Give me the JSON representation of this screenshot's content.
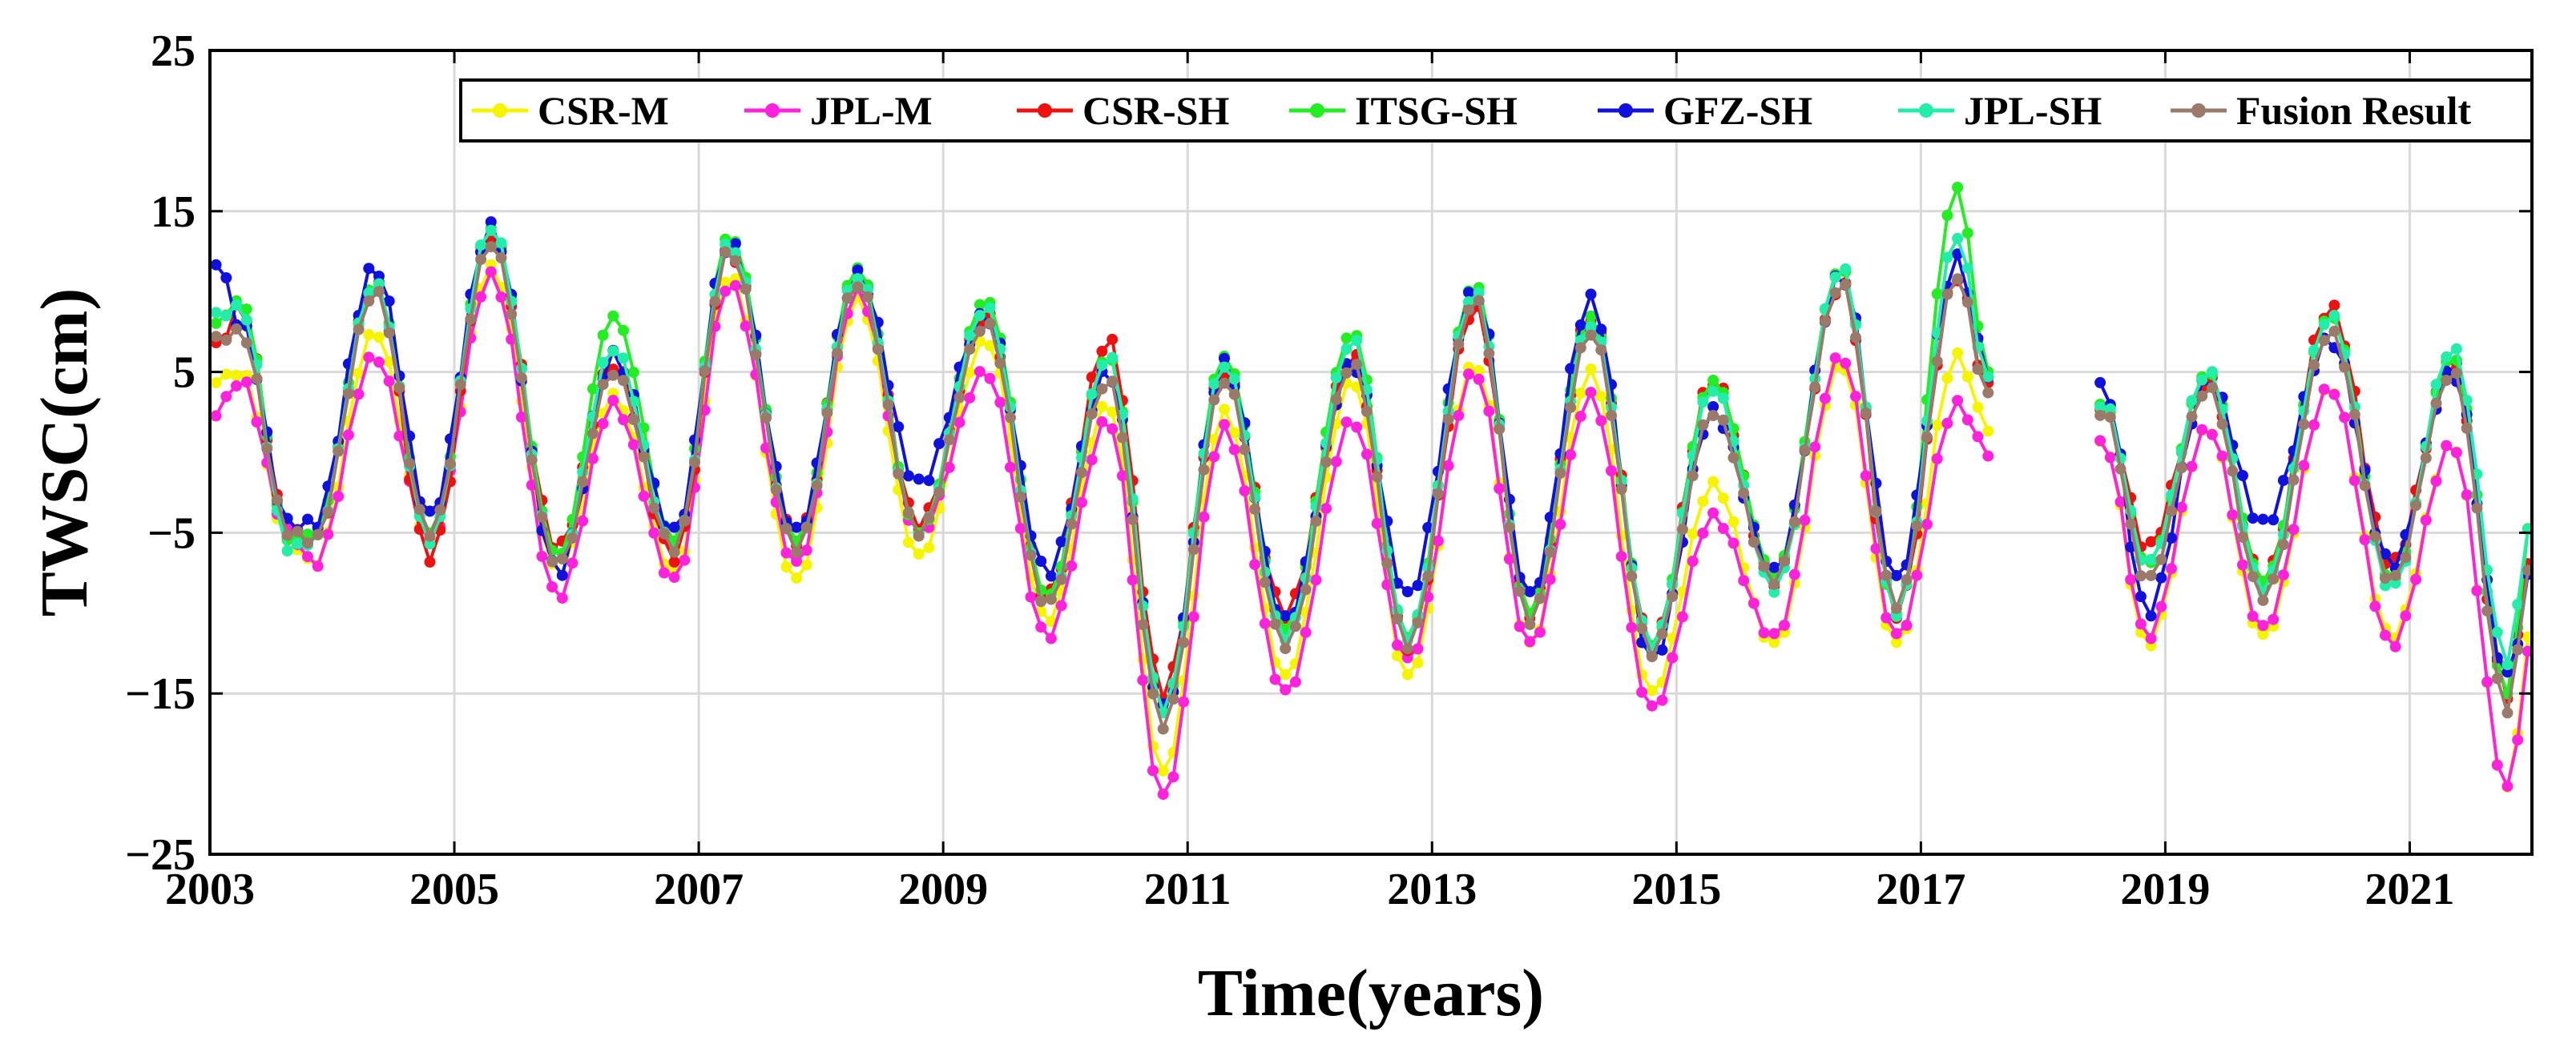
{
  "chart_data": {
    "type": "line",
    "title": "",
    "xlabel": "Time(years)",
    "ylabel": "TWSC(cm)",
    "xlim": [
      2003,
      2022
    ],
    "ylim": [
      -25,
      25
    ],
    "xticks": [
      2003,
      2005,
      2007,
      2009,
      2011,
      2013,
      2015,
      2017,
      2019,
      2021
    ],
    "xtick_labels": [
      "2003",
      "2005",
      "2007",
      "2009",
      "2011",
      "2013",
      "2015",
      "2017",
      "2019",
      "2021"
    ],
    "yticks": [
      -25,
      -15,
      -5,
      5,
      15,
      25
    ],
    "ytick_labels": [
      "−25",
      "−15",
      "−5",
      "5",
      "15",
      "25"
    ],
    "grid": true,
    "legend_position": "top",
    "data_gap": [
      2017.6,
      2018.45
    ],
    "keypoints": {
      "x": [
        2003.05,
        2003.25,
        2003.65,
        2003.85,
        2004.35,
        2004.8,
        2005.3,
        2005.85,
        2006.3,
        2006.8,
        2007.25,
        2007.8,
        2008.3,
        2008.8,
        2009.35,
        2009.85,
        2010.35,
        2010.8,
        2011.3,
        2011.8,
        2012.35,
        2012.8,
        2013.35,
        2013.8,
        2014.3,
        2014.8,
        2015.3,
        2015.8,
        2016.35,
        2016.8,
        2017.3,
        2017.55,
        2018.5,
        2018.85,
        2019.35,
        2019.8,
        2020.35,
        2020.85,
        2021.35,
        2021.8,
        2022.0
      ]
    },
    "series": [
      {
        "name": "CSR-M",
        "color": "#f5f500",
        "values": [
          4.5,
          5.0,
          -5.5,
          -7.0,
          7.5,
          -5.5,
          11.5,
          -7.5,
          3.5,
          -7.5,
          11.0,
          -8.0,
          9.5,
          -6.5,
          7.0,
          -10.5,
          3.0,
          -20.0,
          2.5,
          -14.0,
          4.5,
          -14.0,
          5.5,
          -12.0,
          5.0,
          -15.0,
          -2.0,
          -12.0,
          5.5,
          -12.0,
          6.0,
          1.5,
          0.5,
          -12.0,
          1.5,
          -11.5,
          4.0,
          -11.5,
          0.5,
          -21.0,
          -11.0
        ]
      },
      {
        "name": "JPL-M",
        "color": "#ff22dd",
        "values": [
          2.5,
          4.5,
          -5.0,
          -7.0,
          6.0,
          -5.5,
          11.0,
          -9.0,
          3.0,
          -8.0,
          10.5,
          -7.0,
          10.0,
          -5.0,
          5.0,
          -11.5,
          2.0,
          -21.5,
          1.5,
          -15.0,
          2.0,
          -13.0,
          5.0,
          -12.0,
          3.5,
          -16.0,
          -4.0,
          -11.5,
          6.0,
          -11.5,
          3.0,
          0.0,
          0.5,
          -11.5,
          1.5,
          -11.0,
          4.0,
          -12.0,
          0.5,
          -21.0,
          -12.0
        ]
      },
      {
        "name": "CSR-SH",
        "color": "#ee1111",
        "values": [
          6.5,
          9.0,
          -5.0,
          -5.5,
          10.5,
          -6.5,
          13.5,
          -6.0,
          5.5,
          -6.5,
          12.5,
          -5.5,
          11.0,
          -4.5,
          8.5,
          -9.0,
          7.0,
          -15.0,
          5.0,
          -10.0,
          6.0,
          -12.0,
          9.0,
          -10.0,
          8.5,
          -12.0,
          4.5,
          -8.0,
          10.5,
          -10.0,
          11.0,
          4.0,
          3.0,
          -6.0,
          4.5,
          -8.0,
          9.0,
          -7.0,
          5.5,
          -15.0,
          -6.0
        ]
      },
      {
        "name": "ITSG-SH",
        "color": "#22ee22",
        "values": [
          8.0,
          9.5,
          -5.5,
          -5.0,
          10.5,
          -5.0,
          14.0,
          -6.5,
          8.5,
          -5.5,
          13.5,
          -5.5,
          11.5,
          -5.0,
          9.5,
          -9.0,
          6.0,
          -16.0,
          6.0,
          -11.0,
          7.5,
          -11.5,
          10.5,
          -10.0,
          8.5,
          -12.0,
          4.5,
          -7.5,
          11.5,
          -10.0,
          16.5,
          5.0,
          3.0,
          -7.0,
          5.0,
          -8.0,
          8.5,
          -8.0,
          6.0,
          -15.0,
          -4.0
        ]
      },
      {
        "name": "GFZ-SH",
        "color": "#1111dd",
        "values": [
          12.0,
          8.0,
          -4.5,
          -4.5,
          11.5,
          -4.0,
          14.0,
          -7.5,
          6.0,
          -5.0,
          13.0,
          -5.0,
          11.0,
          -2.0,
          8.5,
          -7.5,
          5.0,
          -16.0,
          5.5,
          -10.5,
          5.5,
          -9.0,
          10.0,
          -9.0,
          9.5,
          -13.0,
          2.5,
          -7.5,
          11.0,
          -8.0,
          12.0,
          5.0,
          4.0,
          -10.0,
          4.5,
          -4.5,
          7.0,
          -7.0,
          5.0,
          -14.0,
          -7.5
        ]
      },
      {
        "name": "JPL-SH",
        "color": "#22eeaa",
        "values": [
          8.5,
          9.0,
          -6.0,
          -5.5,
          10.5,
          -5.5,
          14.0,
          -7.0,
          6.5,
          -6.0,
          13.0,
          -6.0,
          11.0,
          -5.0,
          9.0,
          -9.5,
          6.0,
          -16.0,
          5.5,
          -11.5,
          7.0,
          -11.5,
          10.0,
          -10.5,
          8.0,
          -12.0,
          4.0,
          -8.5,
          11.5,
          -10.0,
          13.5,
          4.5,
          3.0,
          -7.0,
          5.0,
          -8.5,
          8.5,
          -8.5,
          6.5,
          -13.0,
          -4.0
        ]
      },
      {
        "name": "Fusion Result",
        "color": "#9a7a68",
        "values": [
          7.0,
          7.5,
          -5.0,
          -5.5,
          10.0,
          -5.0,
          13.0,
          -7.0,
          5.0,
          -6.0,
          12.5,
          -6.0,
          10.5,
          -5.0,
          8.0,
          -9.5,
          4.5,
          -17.0,
          4.5,
          -12.0,
          5.5,
          -12.0,
          9.5,
          -10.5,
          7.5,
          -12.5,
          2.5,
          -8.0,
          10.5,
          -9.5,
          11.0,
          3.5,
          2.5,
          -8.0,
          4.0,
          -9.0,
          7.5,
          -8.0,
          5.0,
          -16.0,
          -6.5
        ]
      }
    ]
  }
}
